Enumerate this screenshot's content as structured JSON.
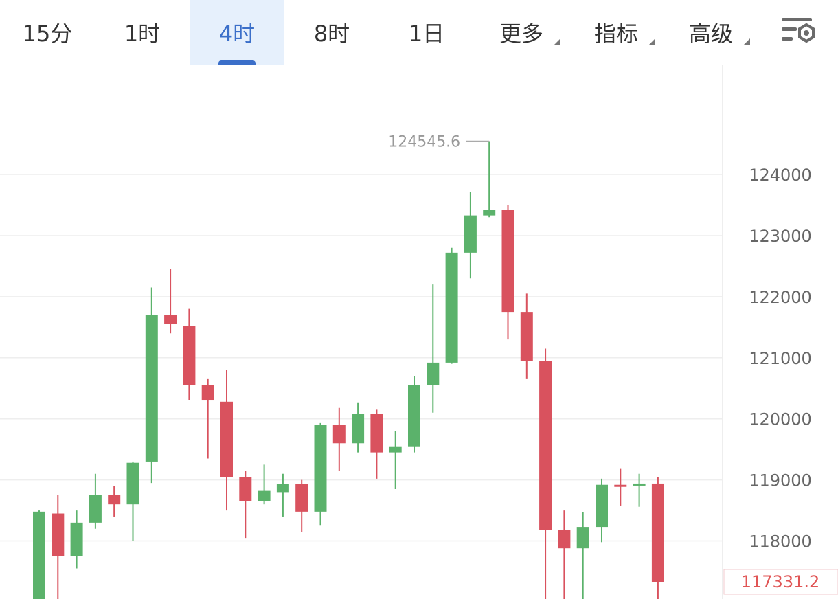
{
  "toolbar": {
    "tabs": [
      {
        "label": "15分"
      },
      {
        "label": "1时"
      },
      {
        "label": "4时"
      },
      {
        "label": "8时"
      },
      {
        "label": "1日"
      },
      {
        "label": "更多"
      },
      {
        "label": "指标"
      },
      {
        "label": "高级"
      }
    ],
    "active_index": 2,
    "settings_icon": "chart-settings-icon"
  },
  "colors": {
    "up": "#5bb26b",
    "down": "#d9525e",
    "active_tab": "#3b6fc9",
    "grid": "#eeeeee"
  },
  "chart_data": {
    "type": "candlestick",
    "interval": "4时",
    "ylim": [
      117050,
      125800
    ],
    "yticks": [
      124000,
      123000,
      122000,
      121000,
      120000,
      119000,
      118000
    ],
    "yticks_labels": [
      "124000",
      "123000",
      "122000",
      "121000",
      "120000",
      "119000",
      "118000"
    ],
    "high_marker": {
      "value": 124545.6,
      "label": "124545.6",
      "index": 24
    },
    "last_price": {
      "value": 117331.2,
      "label": "117331.2"
    },
    "candles": [
      {
        "o": 117000,
        "h": 118500,
        "l": 116800,
        "c": 118480
      },
      {
        "o": 118450,
        "h": 118750,
        "l": 117000,
        "c": 117750
      },
      {
        "o": 117750,
        "h": 118500,
        "l": 117550,
        "c": 118300
      },
      {
        "o": 118300,
        "h": 119100,
        "l": 118200,
        "c": 118750
      },
      {
        "o": 118750,
        "h": 118900,
        "l": 118400,
        "c": 118600
      },
      {
        "o": 118600,
        "h": 119300,
        "l": 118000,
        "c": 119280
      },
      {
        "o": 119300,
        "h": 122150,
        "l": 118950,
        "c": 121700
      },
      {
        "o": 121700,
        "h": 122450,
        "l": 121400,
        "c": 121550
      },
      {
        "o": 121520,
        "h": 121800,
        "l": 120300,
        "c": 120550
      },
      {
        "o": 120550,
        "h": 120650,
        "l": 119350,
        "c": 120300
      },
      {
        "o": 120280,
        "h": 120800,
        "l": 118500,
        "c": 119050
      },
      {
        "o": 119050,
        "h": 119150,
        "l": 118050,
        "c": 118650
      },
      {
        "o": 118650,
        "h": 119250,
        "l": 118600,
        "c": 118820
      },
      {
        "o": 118800,
        "h": 119100,
        "l": 118400,
        "c": 118930
      },
      {
        "o": 118930,
        "h": 119000,
        "l": 118150,
        "c": 118480
      },
      {
        "o": 118480,
        "h": 119930,
        "l": 118250,
        "c": 119900
      },
      {
        "o": 119900,
        "h": 120180,
        "l": 119150,
        "c": 119600
      },
      {
        "o": 119600,
        "h": 120270,
        "l": 119450,
        "c": 120080
      },
      {
        "o": 120080,
        "h": 120150,
        "l": 119020,
        "c": 119450
      },
      {
        "o": 119450,
        "h": 119800,
        "l": 118850,
        "c": 119550
      },
      {
        "o": 119550,
        "h": 120700,
        "l": 119450,
        "c": 120550
      },
      {
        "o": 120550,
        "h": 122200,
        "l": 120100,
        "c": 120920
      },
      {
        "o": 120920,
        "h": 122800,
        "l": 120900,
        "c": 122720
      },
      {
        "o": 122720,
        "h": 123720,
        "l": 122300,
        "c": 123330
      },
      {
        "o": 123330,
        "h": 124545.6,
        "l": 123300,
        "c": 123420
      },
      {
        "o": 123420,
        "h": 123500,
        "l": 121300,
        "c": 121750
      },
      {
        "o": 121750,
        "h": 122050,
        "l": 120650,
        "c": 120950
      },
      {
        "o": 120950,
        "h": 121150,
        "l": 117050,
        "c": 118180
      },
      {
        "o": 118180,
        "h": 118500,
        "l": 116900,
        "c": 117880
      },
      {
        "o": 117880,
        "h": 118470,
        "l": 117000,
        "c": 118230
      },
      {
        "o": 118230,
        "h": 119020,
        "l": 117980,
        "c": 118920
      },
      {
        "o": 118920,
        "h": 119180,
        "l": 118580,
        "c": 118910
      },
      {
        "o": 118910,
        "h": 119100,
        "l": 118560,
        "c": 118940
      },
      {
        "o": 118940,
        "h": 119050,
        "l": 116900,
        "c": 117331.2
      }
    ]
  }
}
